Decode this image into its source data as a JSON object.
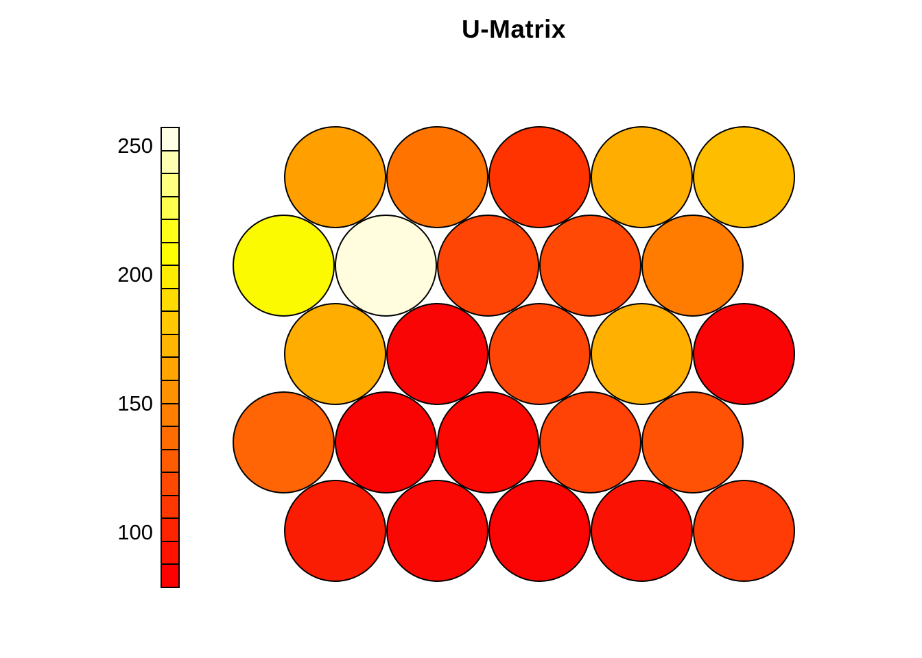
{
  "chart_data": {
    "type": "heatmap",
    "subtype": "som-umatrix",
    "title": "U-Matrix",
    "topology": "hexagonal",
    "grid_rows": 5,
    "grid_cols": 5,
    "legend_position": "left",
    "grid": "off",
    "colorbar": {
      "ticks": [
        250,
        200,
        150,
        100
      ],
      "value_min": 78.5,
      "value_max": 257.5,
      "n_segments": 20,
      "palette_top_to_bottom": [
        "#FFFFE6",
        "#FFFFB3",
        "#FFFF80",
        "#FFFF4D",
        "#FFFF1A",
        "#FFFF00",
        "#FFED00",
        "#FFDB00",
        "#FFC800",
        "#FFB600",
        "#FFA400",
        "#FF9200",
        "#FF8000",
        "#FF6D00",
        "#FF5B00",
        "#FF4900",
        "#FF3700",
        "#FF2400",
        "#FF1200",
        "#FF0000"
      ]
    },
    "rows": [
      {
        "offset": "right",
        "colors": [
          "#FFA000",
          "#FF7300",
          "#FF3300",
          "#FFAD00",
          "#FFBD00"
        ],
        "values": [
          163,
          139,
          105,
          170,
          178
        ]
      },
      {
        "offset": "left",
        "colors": [
          "#FCFA00",
          "#FFFDDD",
          "#FF4505",
          "#FF4905",
          "#FF7C00"
        ],
        "values": [
          212,
          252,
          115,
          117,
          144
        ]
      },
      {
        "offset": "right",
        "colors": [
          "#FFAD00",
          "#FA0505",
          "#FF4505",
          "#FFB000",
          "#FA0505"
        ],
        "values": [
          170,
          81,
          115,
          171,
          81
        ]
      },
      {
        "offset": "left",
        "colors": [
          "#FF6505",
          "#FA0303",
          "#FB0803",
          "#FF4205",
          "#FF5205"
        ],
        "values": [
          132,
          80,
          81,
          113,
          122
        ]
      },
      {
        "offset": "right",
        "colors": [
          "#FA1D04",
          "#FA0803",
          "#FA0503",
          "#FA1304",
          "#FF3C05"
        ],
        "values": [
          94,
          80,
          79,
          89,
          110
        ]
      }
    ],
    "values_note": "node unified-distance values estimated from color scale",
    "colors": {
      "background": "#FFFFFF",
      "node_stroke": "#000000",
      "text": "#000000"
    }
  }
}
